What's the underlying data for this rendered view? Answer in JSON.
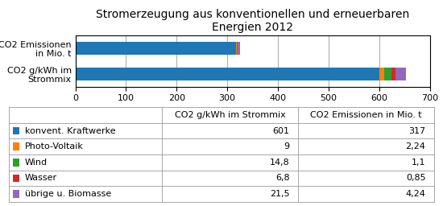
{
  "chart_data": {
    "type": "bar",
    "orientation": "horizontal",
    "stacked": true,
    "title": "Stromerzeugung aus konventionellen und erneuerbaren\nEnergien 2012",
    "categories": [
      "CO2 g/kWh im\nStrommix",
      "CO2 Emissionen\nin Mio. t"
    ],
    "series": [
      {
        "name": "konvent. Kraftwerke",
        "values": [
          601,
          317
        ],
        "value_labels": [
          "601",
          "317"
        ]
      },
      {
        "name": "Photo-Voltaik",
        "values": [
          9,
          2.24
        ],
        "value_labels": [
          "9",
          "2,24"
        ]
      },
      {
        "name": "Wind",
        "values": [
          14.8,
          1.1
        ],
        "value_labels": [
          "14,8",
          "1,1"
        ]
      },
      {
        "name": "Wasser",
        "values": [
          6.8,
          0.85
        ],
        "value_labels": [
          "6,8",
          "0,85"
        ]
      },
      {
        "name": "übrige u. Biomasse",
        "values": [
          21.5,
          4.24
        ],
        "value_labels": [
          "21,5",
          "4,24"
        ]
      }
    ],
    "annotations": [
      "CO2 g/kWh im Strommix",
      "CO2 Emissionen in Mio. t"
    ],
    "xlim": [
      0,
      700
    ],
    "xticks": [
      0,
      100,
      200,
      300,
      400,
      500,
      600,
      700
    ],
    "grid": true
  }
}
